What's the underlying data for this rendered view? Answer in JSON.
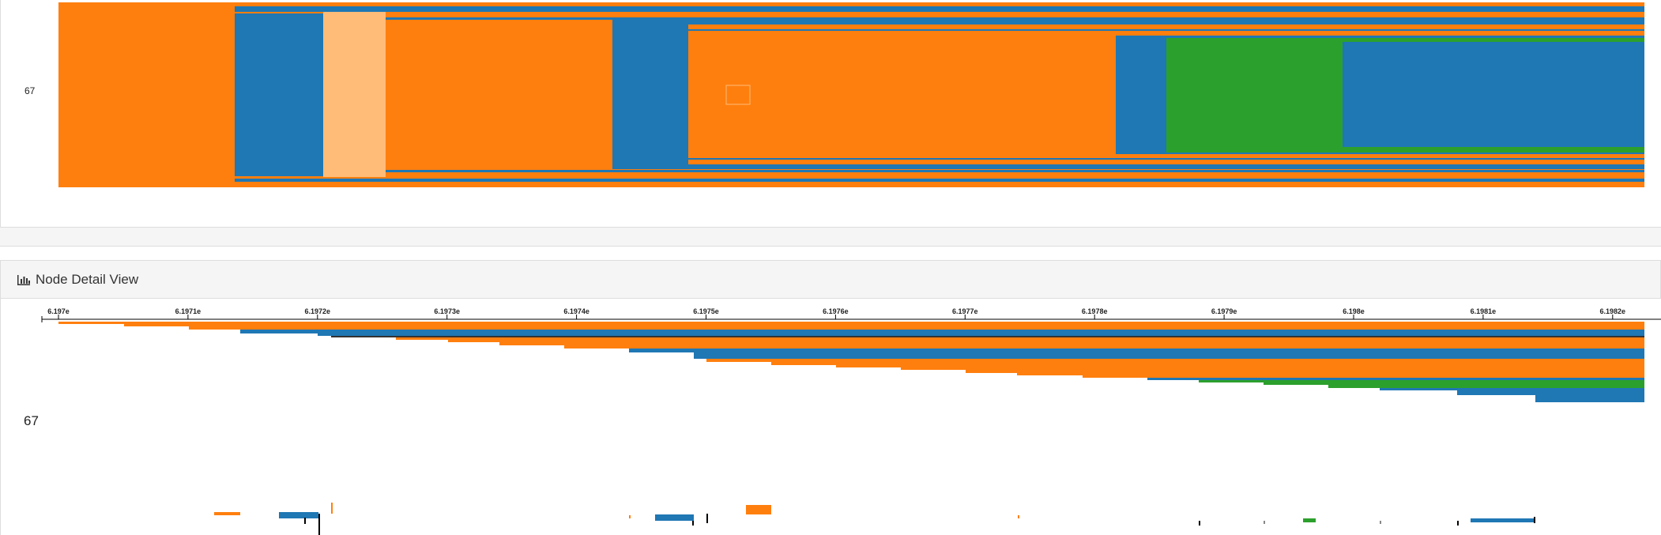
{
  "top_panel": {
    "row_label": "67"
  },
  "detail_view": {
    "title": "Node Detail View",
    "icon": "bar-chart-icon",
    "row_label": "67",
    "axis_ticks": [
      "6.197e",
      "6.1971e",
      "6.1972e",
      "6.1973e",
      "6.1974e",
      "6.1975e",
      "6.1976e",
      "6.1977e",
      "6.1978e",
      "6.1979e",
      "6.198e",
      "6.1981e",
      "6.1982e"
    ]
  },
  "colors": {
    "orange": "#ff7f0e",
    "blue": "#1f77b4",
    "green": "#2ca02c",
    "light_orange": "#ffbb78",
    "panel_bg": "#f5f5f5",
    "border": "#dddddd"
  }
}
